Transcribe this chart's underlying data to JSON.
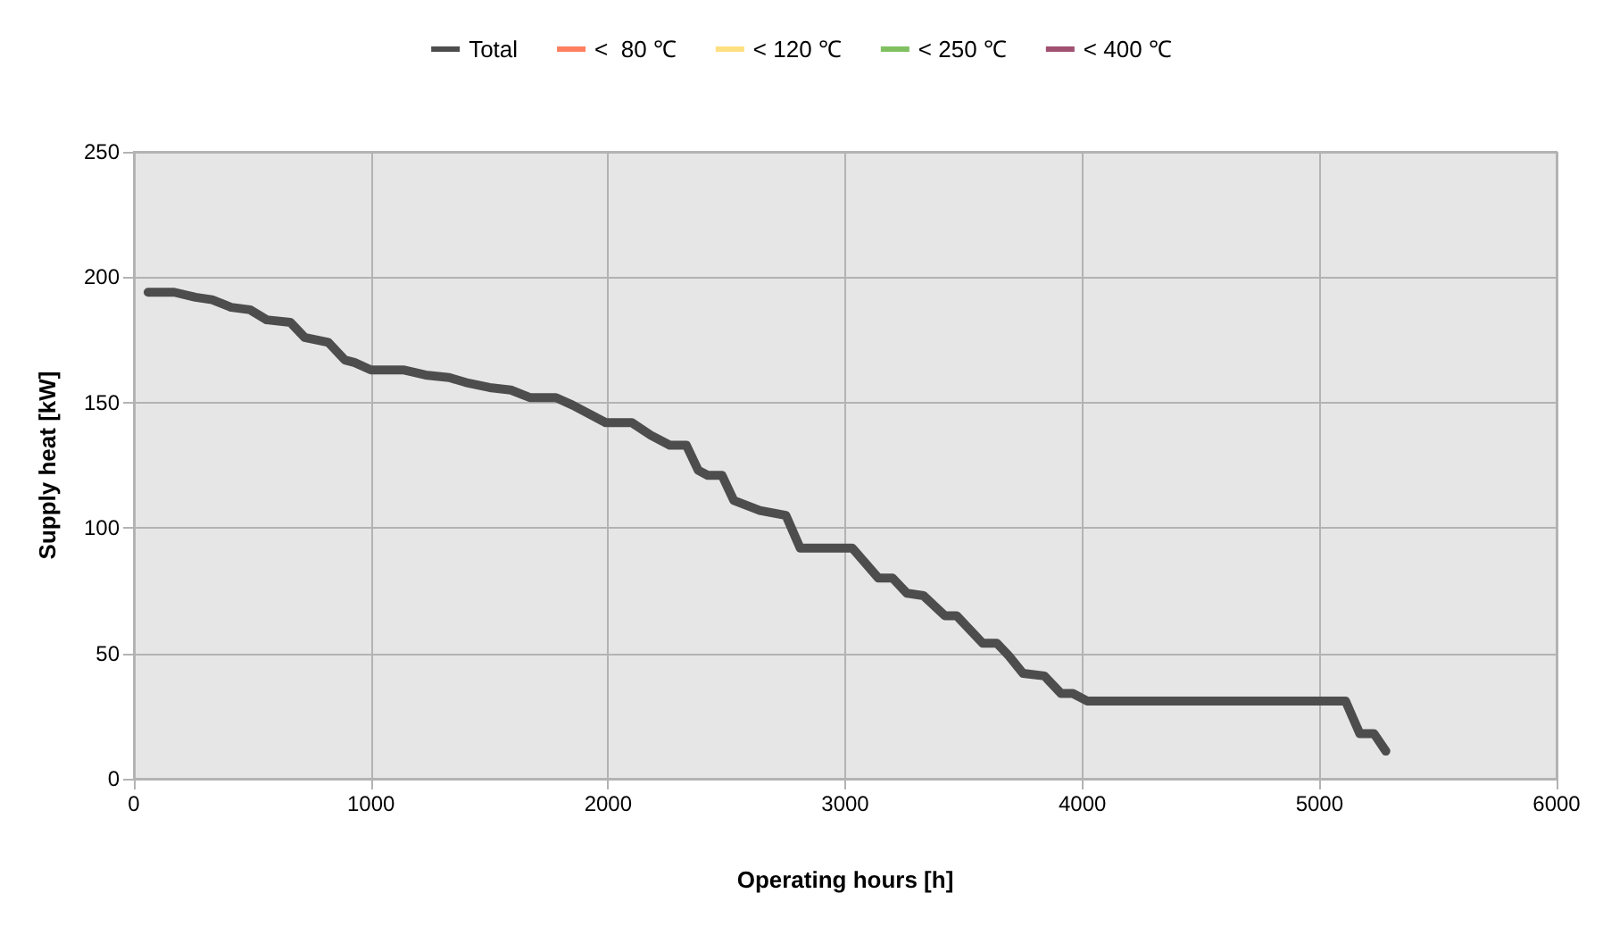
{
  "chart_data": {
    "type": "line",
    "xlabel": "Operating hours [h]",
    "ylabel": "Supply heat [kW]",
    "xlim": [
      0,
      6000
    ],
    "xticks": [
      0,
      1000,
      2000,
      3000,
      4000,
      5000,
      6000
    ],
    "ylim": [
      0,
      250
    ],
    "yticks": [
      0,
      50,
      100,
      150,
      200,
      250
    ],
    "grid": true,
    "legend": "top",
    "marker": "none",
    "line_style": "solid",
    "series": [
      {
        "name": "Total",
        "color": "#4d4d4d",
        "x": [
          60,
          170,
          260,
          330,
          410,
          490,
          560,
          660,
          720,
          820,
          890,
          930,
          1000,
          1140,
          1230,
          1330,
          1400,
          1450,
          1500,
          1590,
          1670,
          1780,
          1850,
          1990,
          2100,
          2180,
          2260,
          2330,
          2380,
          2420,
          2480,
          2530,
          2640,
          2750,
          2810,
          3030,
          3140,
          3200,
          3260,
          3330,
          3420,
          3470,
          3580,
          3640,
          3690,
          3750,
          3840,
          3910,
          3960,
          4020,
          5110,
          5170,
          5230,
          5280
        ],
        "values": [
          194,
          194,
          192,
          191,
          188,
          187,
          183,
          182,
          176,
          174,
          167,
          166,
          163,
          163,
          161,
          160,
          158,
          157,
          156,
          155,
          152,
          152,
          149,
          142,
          142,
          137,
          133,
          133,
          123,
          121,
          121,
          111,
          107,
          105,
          92,
          92,
          80,
          80,
          74,
          73,
          65,
          65,
          54,
          54,
          49,
          42,
          41,
          34,
          34,
          31,
          31,
          18,
          18,
          11
        ]
      },
      {
        "name": "<  80 ℃",
        "color": "#ff8060"
      },
      {
        "name": "< 120 ℃",
        "color": "#ffe080"
      },
      {
        "name": "< 250 ℃",
        "color": "#80c060"
      },
      {
        "name": "< 400 ℃",
        "color": "#a05070"
      }
    ]
  }
}
